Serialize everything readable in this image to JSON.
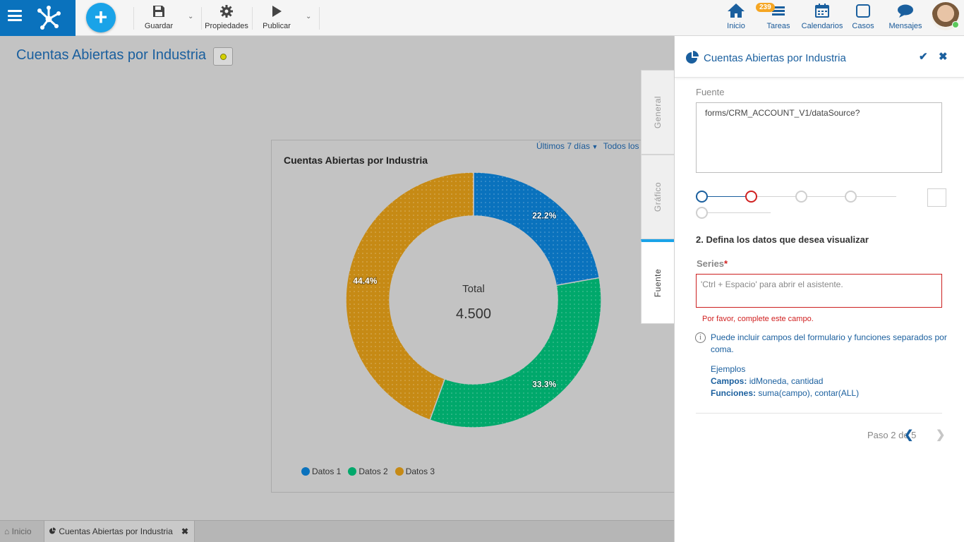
{
  "toolbar": {
    "save_label": "Guardar",
    "properties_label": "Propiedades",
    "publish_label": "Publicar"
  },
  "nav": {
    "home_label": "Inicio",
    "tasks_label": "Tareas",
    "tasks_badge": "239",
    "calendars_label": "Calendarios",
    "cases_label": "Casos",
    "messages_label": "Mensajes"
  },
  "page": {
    "title": "Cuentas Abiertas por Industria"
  },
  "chart_card": {
    "period": "Últimos 7 días",
    "period_all": "Todos los us",
    "title": "Cuentas Abiertas por Industria",
    "center_label": "Total",
    "center_value": "4.500"
  },
  "chart_data": {
    "type": "pie",
    "title": "Cuentas Abiertas por Industria",
    "categories": [
      "Datos 1",
      "Datos 2",
      "Datos 3"
    ],
    "values": [
      22.2,
      33.3,
      44.4
    ],
    "labels": [
      "22.2%",
      "33.3%",
      "44.4%"
    ],
    "colors": [
      "#0a72bd",
      "#00a86b",
      "#c68a15"
    ],
    "donut": true,
    "legend_position": "bottom"
  },
  "side_tabs": [
    "General",
    "Gráfico",
    "Fuente"
  ],
  "panel": {
    "title": "Cuentas Abiertas por Industria",
    "fuente_label": "Fuente",
    "fuente_value": "forms/CRM_ACCOUNT_V1/dataSource?",
    "step_heading": "2. Defina los datos que desea visualizar",
    "series_label": "Series",
    "series_required": "*",
    "series_placeholder": "'Ctrl + Espacio' para abrir el asistente.",
    "error": "Por favor, complete este campo.",
    "info": "Puede incluir campos del formulario y funciones separados por coma.",
    "examples_title": "Ejemplos",
    "fields_label": "Campos:",
    "fields_value": "idMoneda, cantidad",
    "functions_label": "Funciones:",
    "functions_value": "suma(campo), contar(ALL)",
    "step_text": "Paso 2 de 5"
  },
  "bottom_tabs": {
    "home": "Inicio",
    "active": "Cuentas Abiertas por Industria"
  },
  "colors": {
    "brand": "#0a72bd",
    "accent": "#1aa3e8",
    "error": "#d02020",
    "link": "#1a5f9e"
  }
}
